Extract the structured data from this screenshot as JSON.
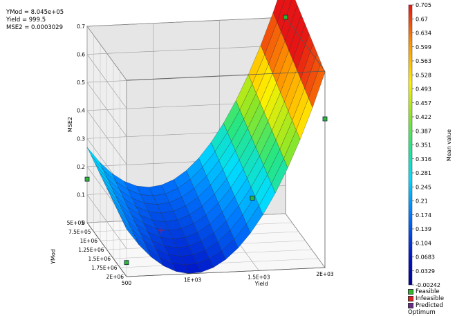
{
  "readout": {
    "ymod": "YMod = 8.045e+05",
    "yield": "Yield = 999.5",
    "mse2": "MSE2 = 0.0003029"
  },
  "chart_data": {
    "type": "surface",
    "z_axis": {
      "label": "MSE2",
      "ticks": [
        "0",
        "0.1",
        "0.2",
        "0.3",
        "0.4",
        "0.5",
        "0.6",
        "0.7"
      ]
    },
    "ymod_axis": {
      "label": "YMod",
      "ticks": [
        "5E+05",
        "7.5E+05",
        "1E+06",
        "1.25E+06",
        "1.5E+06",
        "1.75E+06",
        "2E+06"
      ]
    },
    "yield_axis": {
      "label": "Yield",
      "ticks": [
        "500",
        "1E+03",
        "1.5E+03",
        "2E+03"
      ]
    },
    "colorbar": {
      "label": "Mean value",
      "ticks": [
        "0.705",
        "0.67",
        "0.634",
        "0.599",
        "0.563",
        "0.528",
        "0.493",
        "0.457",
        "0.422",
        "0.387",
        "0.351",
        "0.316",
        "0.281",
        "0.245",
        "0.21",
        "0.174",
        "0.139",
        "0.104",
        "0.0683",
        "0.0329",
        "-0.00242"
      ]
    },
    "legend": [
      {
        "label": "Feasible",
        "color": "#2db82d"
      },
      {
        "label": "Infeasible",
        "color": "#e02020"
      },
      {
        "label": "Predicted Optimum",
        "color": "#6a2a8a"
      }
    ],
    "optimum": {
      "ymod": 804500,
      "yield": 999.5,
      "mse2": 0.0003029
    },
    "points": [
      {
        "ymod": 500000,
        "yield": 500,
        "mse2": 0.155
      },
      {
        "ymod": 2000000,
        "yield": 500,
        "mse2": 0.05
      },
      {
        "ymod": 500000,
        "yield": 2000,
        "mse2": 0.7
      },
      {
        "ymod": 2000000,
        "yield": 2000,
        "mse2": 0.53
      },
      {
        "ymod": 1250000,
        "yield": 1600,
        "mse2": 0.16
      }
    ]
  }
}
